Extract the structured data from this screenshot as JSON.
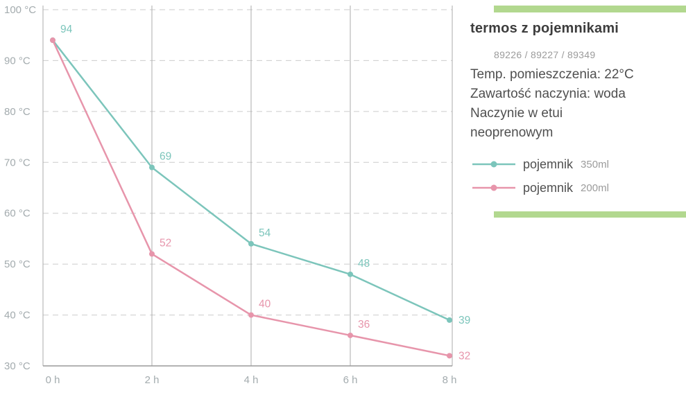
{
  "panel": {
    "accent_color": "#b2d88f",
    "title": "termos z pojemnikami",
    "codes": "89226 / 89227 / 89349",
    "description_lines": [
      "Temp. pomieszczenia: 22°C",
      "Zawartość naczynia: woda",
      "Naczynie w etui",
      "neoprenowym"
    ],
    "legend": [
      {
        "name": "pojemnik",
        "size": "350ml",
        "color": "#7cc5bb"
      },
      {
        "name": "pojemnik",
        "size": "200ml",
        "color": "#e795ab"
      }
    ]
  },
  "chart_data": {
    "type": "line",
    "title": "",
    "xlabel": "",
    "ylabel": "",
    "x": [
      0,
      2,
      4,
      6,
      8
    ],
    "x_tick_labels": [
      "0 h",
      "2 h",
      "4 h",
      "6 h",
      "8 h"
    ],
    "ylim": [
      30,
      100
    ],
    "ytick_step": 10,
    "ytick_suffix": " °C",
    "grid": "horizontal dashed, vertical solid at x ticks",
    "legend_position": "right-panel",
    "axis_label_color": "#a3abae",
    "series": [
      {
        "name": "pojemnik 350ml",
        "color": "#7cc5bb",
        "values": [
          94,
          69,
          54,
          48,
          39
        ],
        "point_labels": [
          "94",
          "69",
          "54",
          "48",
          "39"
        ]
      },
      {
        "name": "pojemnik 200ml",
        "color": "#e795ab",
        "values": [
          94,
          52,
          40,
          36,
          32
        ],
        "point_labels": [
          "",
          "52",
          "40",
          "36",
          "32"
        ]
      }
    ]
  }
}
